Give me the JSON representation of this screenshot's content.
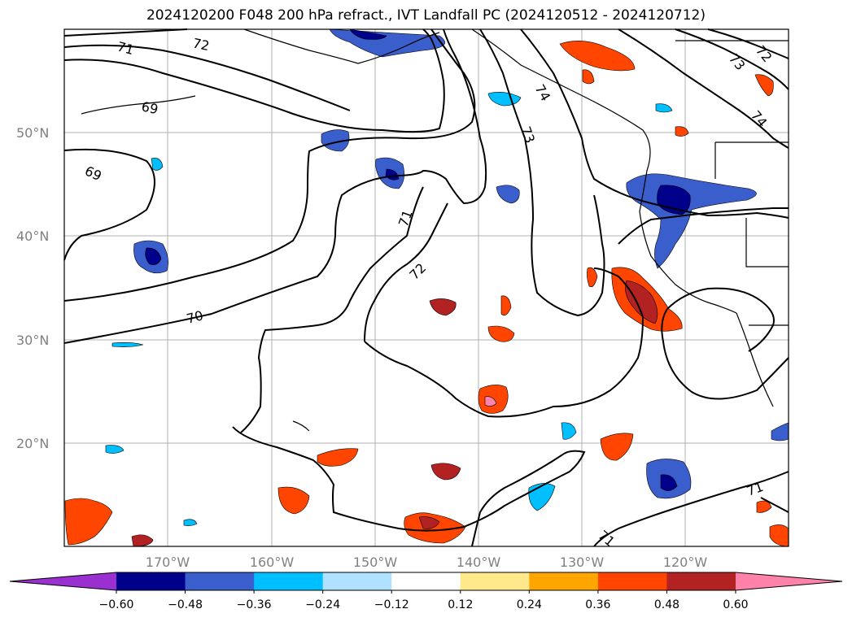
{
  "title": "2024120200 F048 200 hPa refract., IVT Landfall PC (2024120512 - 2024120712)",
  "map": {
    "lat_labels": [
      "50°N",
      "40°N",
      "30°N",
      "20°N"
    ],
    "lon_labels": [
      "170°W",
      "160°W",
      "150°W",
      "140°W",
      "130°W",
      "120°W"
    ],
    "contour_labels": [
      "71",
      "72",
      "69",
      "69",
      "70",
      "71",
      "72",
      "73",
      "74",
      "73",
      "72",
      "74",
      "71",
      "71"
    ],
    "contour_color": "#000000",
    "coastline_color": "#000000",
    "grid_color": "#b0b0b0"
  },
  "colorbar": {
    "ticks": [
      "−0.60",
      "−0.48",
      "−0.36",
      "−0.24",
      "−0.12",
      "0.12",
      "0.24",
      "0.36",
      "0.48",
      "0.60"
    ],
    "colors": [
      "#9b30d0",
      "#00008b",
      "#3a5fcd",
      "#00bfff",
      "#b0e2ff",
      "#ffffff",
      "#ffe98a",
      "#ffa500",
      "#ff4500",
      "#b22222",
      "#ff82ab",
      "#ff82ab"
    ]
  }
}
